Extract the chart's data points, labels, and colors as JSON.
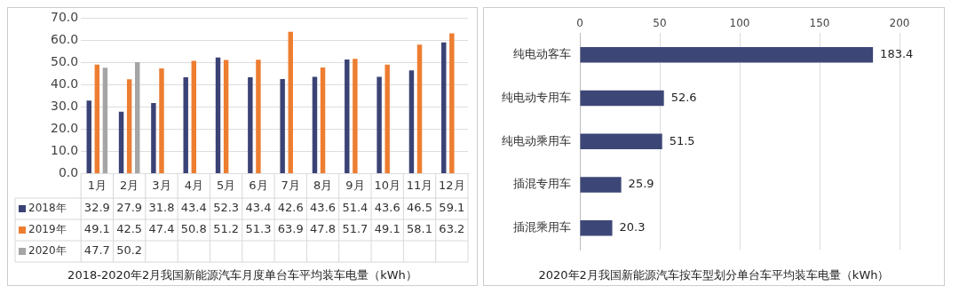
{
  "chart_data": [
    {
      "type": "bar",
      "categories": [
        "1月",
        "2月",
        "3月",
        "4月",
        "5月",
        "6月",
        "7月",
        "8月",
        "9月",
        "10月",
        "11月",
        "12月"
      ],
      "series": [
        {
          "name": "2018年",
          "color": "#3b4275",
          "values": [
            32.9,
            27.9,
            31.8,
            43.4,
            52.3,
            43.4,
            42.6,
            43.6,
            51.4,
            43.6,
            46.5,
            59.1
          ]
        },
        {
          "name": "2019年",
          "color": "#ed7d31",
          "values": [
            49.1,
            42.5,
            47.4,
            50.8,
            51.2,
            51.3,
            63.9,
            47.8,
            51.7,
            49.1,
            58.1,
            63.2
          ]
        },
        {
          "name": "2020年",
          "color": "#a5a5a5",
          "values": [
            47.7,
            50.2,
            null,
            null,
            null,
            null,
            null,
            null,
            null,
            null,
            null,
            null
          ]
        }
      ],
      "ylim": [
        0,
        70
      ],
      "yticks": [
        {
          "value": 0,
          "label": "0.0"
        },
        {
          "value": 10,
          "label": "10.0"
        },
        {
          "value": 20,
          "label": "20.0"
        },
        {
          "value": 30,
          "label": "30.0"
        },
        {
          "value": 40,
          "label": "40.0"
        },
        {
          "value": 50,
          "label": "50.0"
        },
        {
          "value": 60,
          "label": "60.0"
        },
        {
          "value": 70,
          "label": "70.0"
        }
      ],
      "grid": "y",
      "legend": "bottom",
      "data_labels": true,
      "annotations": [
        "2018-2020年2月我国新能源汽车月度单台车平均装车电量（kWh）"
      ]
    },
    {
      "type": "bar",
      "orientation": "horizontal",
      "categories": [
        "纯电动客车",
        "纯电动专用车",
        "纯电动乘用车",
        "插混专用车",
        "插混乘用车"
      ],
      "values": [
        183.4,
        52.6,
        51.5,
        25.9,
        20.3
      ],
      "color": "#3d4777",
      "xlim": [
        0,
        200
      ],
      "xticks": [
        0,
        50,
        100,
        150,
        200
      ],
      "grid": "x",
      "data_labels": true,
      "annotations": [
        "2020年2月我国新能源汽车按车型划分单台车平均装车电量（kWh）"
      ]
    }
  ]
}
